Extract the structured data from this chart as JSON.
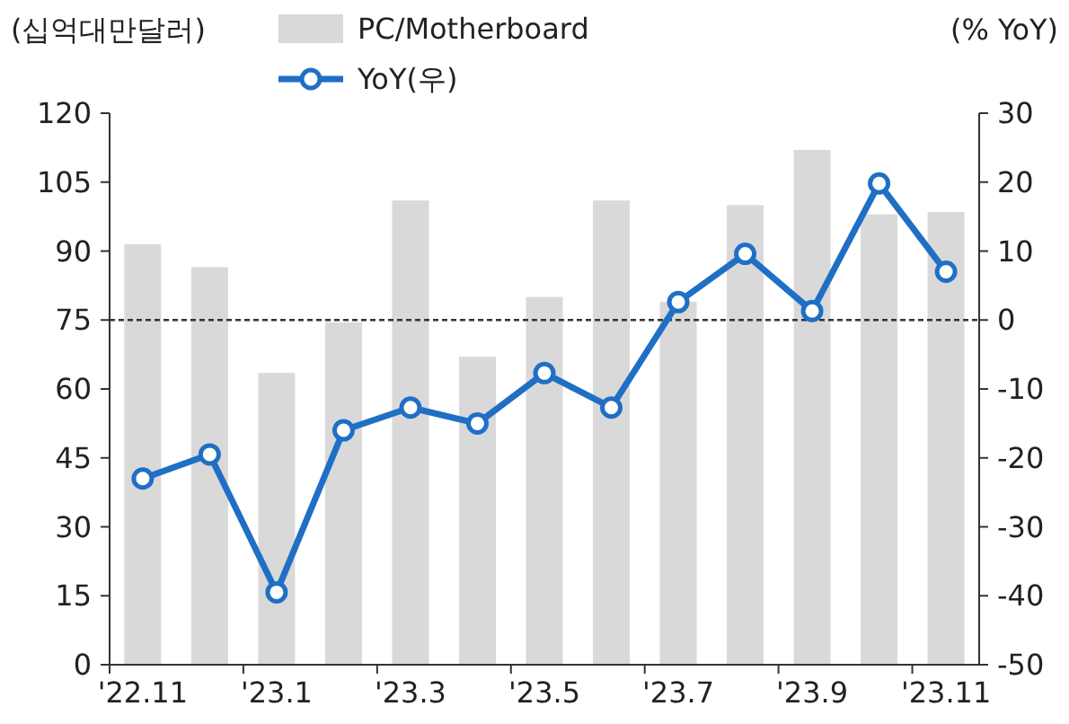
{
  "chart_data": {
    "type": "bar",
    "ylabel": "(십억대만달러)",
    "y2label": "(% YoY)",
    "categories": [
      "'22.11",
      null,
      "'23.1",
      null,
      "'23.3",
      null,
      "'23.5",
      null,
      "'23.7",
      null,
      "'23.9",
      null,
      "'23.11"
    ],
    "series": [
      {
        "name": "PC/Motherboard",
        "color": "#d9d9d9",
        "values": [
          91.5,
          86.5,
          63.5,
          74.5,
          101,
          67,
          80,
          101,
          79,
          100,
          112,
          98,
          98.5
        ]
      },
      {
        "name": "YoY(우)",
        "type": "line",
        "axis": "y2",
        "color": "#1f6fc5",
        "marker": "circle",
        "values": [
          -23,
          -19.5,
          -39.5,
          -16,
          -12.7,
          -15,
          -7.7,
          -12.7,
          2.6,
          9.6,
          1.3,
          19.8,
          7
        ]
      }
    ],
    "ylim": [
      0,
      120
    ],
    "yticks": [
      0,
      15,
      30,
      45,
      60,
      75,
      90,
      105,
      120
    ],
    "y2lim": [
      -50,
      30
    ],
    "y2ticks": [
      -50,
      -40,
      -30,
      -20,
      -10,
      0,
      10,
      20,
      30
    ],
    "ref_lines": [
      {
        "axis": "y2",
        "value": 0,
        "line_style": "dashed",
        "color": "#333333"
      }
    ],
    "legend": "top",
    "grid": false
  }
}
